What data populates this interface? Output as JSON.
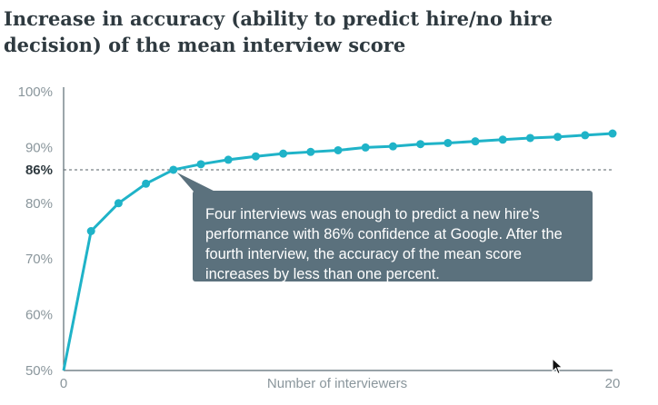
{
  "page": {
    "title": "Increase in accuracy (ability to predict hire/no hire decision) of the mean interview score"
  },
  "annotation": {
    "text": "Four interviews was enough to predict a new hire's performance with 86% confidence at Google. After the fourth interview, the accuracy of the mean score increases by less than one percent."
  },
  "chart_data": {
    "type": "line",
    "title": "Increase in accuracy (ability to predict hire/no hire decision) of the mean interview score",
    "xlabel": "Number of interviewers",
    "ylabel": "",
    "xlim": [
      0,
      20
    ],
    "ylim": [
      50,
      100
    ],
    "y_ticks": [
      50,
      60,
      70,
      80,
      90,
      100
    ],
    "y_tick_labels": [
      "50%",
      "60%",
      "70%",
      "80%",
      "90%",
      "100%"
    ],
    "x_tick_labels": [
      "0",
      "20"
    ],
    "reference_line": {
      "y": 86,
      "label": "86%"
    },
    "grid": false,
    "series": [
      {
        "x": [
          0,
          1,
          2,
          3,
          4,
          5,
          6,
          7,
          8,
          9,
          10,
          11,
          12,
          13,
          14,
          15,
          16,
          17,
          18,
          19,
          20
        ],
        "y": [
          50,
          75,
          80,
          83.5,
          86,
          87,
          87.8,
          88.4,
          88.9,
          89.2,
          89.5,
          90,
          90.2,
          90.6,
          90.8,
          91.1,
          91.4,
          91.7,
          91.9,
          92.2,
          92.5
        ]
      }
    ],
    "colors": {
      "line": "#1fb3c8",
      "axis": "#5b6b73",
      "callout": "#5b717d"
    }
  }
}
